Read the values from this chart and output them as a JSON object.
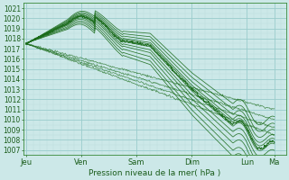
{
  "title": "Pression niveau de la mer( hPa )",
  "bg_color": "#cce8e8",
  "grid_major_color": "#99cccc",
  "grid_minor_color": "#bbdddd",
  "line_color": "#1a6b1a",
  "ylim": [
    1006.5,
    1021.5
  ],
  "yticks": [
    1007,
    1008,
    1009,
    1010,
    1011,
    1012,
    1013,
    1014,
    1015,
    1016,
    1017,
    1018,
    1019,
    1020,
    1021
  ],
  "xtick_labels": [
    "Jeu",
    "Ven",
    "Sam",
    "Dim",
    "Lun",
    "Ma"
  ],
  "xtick_positions": [
    0,
    24,
    48,
    72,
    96,
    108
  ],
  "xlim": [
    -1,
    113
  ],
  "num_points": 400
}
